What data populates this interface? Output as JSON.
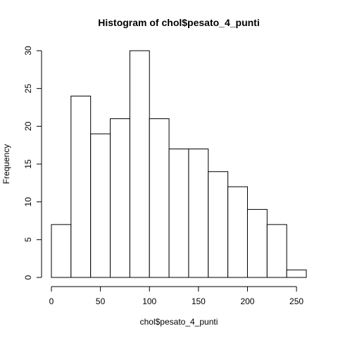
{
  "chart_data": {
    "type": "bar",
    "title": "Histogram of chol$pesato_4_punti",
    "xlabel": "chol$pesato_4_punti",
    "ylabel": "Frequency",
    "bin_edges": [
      0,
      20,
      40,
      60,
      80,
      100,
      120,
      140,
      160,
      180,
      200,
      220,
      240,
      260
    ],
    "values": [
      7,
      24,
      19,
      21,
      30,
      21,
      17,
      17,
      14,
      12,
      9,
      7,
      1
    ],
    "xlim": [
      0,
      260
    ],
    "ylim": [
      0,
      30
    ],
    "x_ticks": [
      0,
      50,
      100,
      150,
      200,
      250
    ],
    "y_ticks": [
      0,
      5,
      10,
      15,
      20,
      25,
      30
    ],
    "grid": false,
    "bar_fill": "#ffffff",
    "bar_stroke": "#000000"
  }
}
